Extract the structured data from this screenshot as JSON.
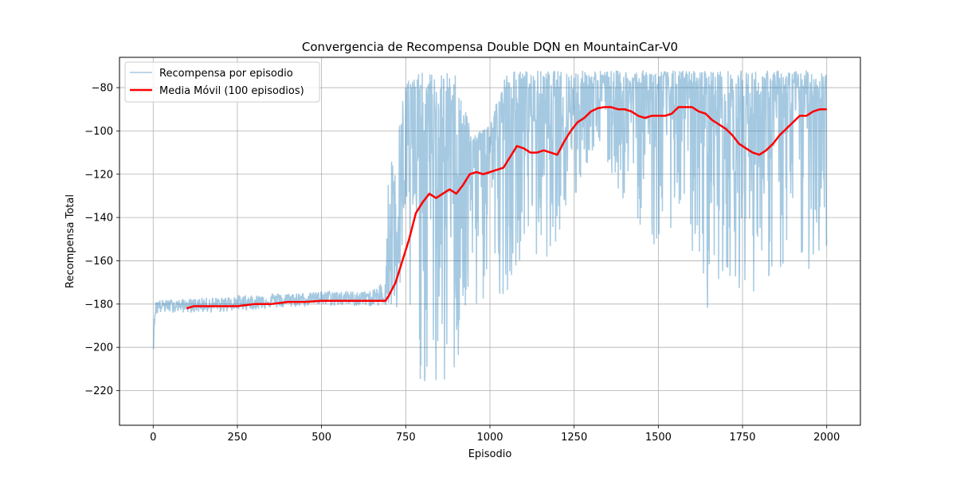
{
  "chart_data": {
    "type": "line",
    "title": "Convergencia de Recompensa Double DQN en MountainCar-V0",
    "xlabel": "Episodio",
    "ylabel": "Recompensa Total",
    "xlim": [
      -100,
      2100
    ],
    "ylim": [
      -236,
      -66
    ],
    "xticks": [
      0,
      250,
      500,
      750,
      1000,
      1250,
      1500,
      1750,
      2000
    ],
    "xtick_labels": [
      "0",
      "250",
      "500",
      "750",
      "1000",
      "1250",
      "1500",
      "1750",
      "2000"
    ],
    "yticks": [
      -220,
      -200,
      -180,
      -160,
      -140,
      -120,
      -100,
      -80
    ],
    "ytick_labels": [
      "−220",
      "−200",
      "−180",
      "−160",
      "−140",
      "−120",
      "−100",
      "−80"
    ],
    "grid": true,
    "legend_position": "upper-left",
    "series": [
      {
        "name": "Recompensa por episodio",
        "color": "#1f77b4",
        "alpha": 0.4,
        "style": "noisy-band",
        "x": [
          0,
          5,
          10,
          50,
          100,
          150,
          200,
          250,
          300,
          350,
          400,
          450,
          500,
          550,
          600,
          650,
          690,
          700,
          720,
          750,
          800,
          850,
          900,
          950,
          1000,
          1050,
          1100,
          1150,
          1200,
          1250,
          1300,
          1350,
          1400,
          1450,
          1500,
          1550,
          1600,
          1650,
          1700,
          1750,
          1800,
          1850,
          1900,
          1950,
          2000
        ],
        "center": [
          -200,
          -185,
          -181,
          -181,
          -181,
          -181,
          -181,
          -180,
          -180,
          -179,
          -179,
          -178,
          -178,
          -178,
          -178,
          -178,
          -178,
          -150,
          -140,
          -120,
          -110,
          -115,
          -110,
          -110,
          -105,
          -100,
          -90,
          -95,
          -95,
          -88,
          -85,
          -85,
          -85,
          -85,
          -85,
          -85,
          -85,
          -85,
          -95,
          -95,
          -90,
          -90,
          -85,
          -83,
          -85
        ],
        "low": [
          -204,
          -187,
          -185,
          -184,
          -184,
          -184,
          -184,
          -183,
          -183,
          -182,
          -182,
          -181,
          -181,
          -181,
          -181,
          -181,
          -181,
          -197,
          -190,
          -190,
          -221,
          -231,
          -218,
          -190,
          -178,
          -175,
          -155,
          -165,
          -150,
          -140,
          -110,
          -120,
          -135,
          -145,
          -160,
          -140,
          -160,
          -185,
          -165,
          -175,
          -175,
          -168,
          -175,
          -165,
          -160
        ],
        "high": [
          -196,
          -180,
          -178,
          -178,
          -178,
          -177,
          -177,
          -176,
          -176,
          -175,
          -175,
          -175,
          -174,
          -174,
          -174,
          -174,
          -168,
          -112,
          -110,
          -73,
          -73,
          -73,
          -73,
          -103,
          -95,
          -72,
          -72,
          -72,
          -72,
          -72,
          -72,
          -72,
          -72,
          -72,
          -72,
          -72,
          -72,
          -72,
          -72,
          -72,
          -72,
          -72,
          -72,
          -72,
          -72
        ]
      },
      {
        "name": "Media Móvil (100 episodios)",
        "color": "#ff0000",
        "style": "line",
        "x": [
          99,
          120,
          150,
          200,
          250,
          300,
          350,
          400,
          450,
          500,
          550,
          600,
          650,
          690,
          700,
          720,
          740,
          760,
          780,
          800,
          820,
          840,
          860,
          880,
          900,
          920,
          940,
          960,
          980,
          1000,
          1020,
          1040,
          1060,
          1080,
          1100,
          1120,
          1140,
          1160,
          1180,
          1200,
          1220,
          1240,
          1260,
          1280,
          1300,
          1320,
          1340,
          1360,
          1380,
          1400,
          1420,
          1440,
          1460,
          1480,
          1500,
          1520,
          1540,
          1560,
          1580,
          1600,
          1620,
          1640,
          1660,
          1680,
          1700,
          1720,
          1740,
          1760,
          1780,
          1800,
          1820,
          1840,
          1860,
          1880,
          1900,
          1920,
          1940,
          1960,
          1980,
          2000
        ],
        "y": [
          -182,
          -181,
          -181,
          -181,
          -181,
          -180,
          -180,
          -179,
          -179,
          -178.5,
          -178.5,
          -178.5,
          -178.5,
          -178.5,
          -176,
          -170,
          -160,
          -150,
          -138,
          -133,
          -129,
          -131,
          -129,
          -127,
          -129,
          -125,
          -120,
          -119,
          -120,
          -119,
          -118,
          -117,
          -112,
          -107,
          -108,
          -110,
          -110,
          -109,
          -110,
          -111,
          -105,
          -100,
          -96,
          -94,
          -91,
          -89.5,
          -89,
          -89,
          -90,
          -90,
          -91,
          -93,
          -94,
          -93,
          -93,
          -93,
          -92,
          -89,
          -89,
          -89,
          -91,
          -92,
          -95,
          -97,
          -99,
          -102,
          -106,
          -108,
          -110,
          -111,
          -109,
          -106,
          -102,
          -99,
          -96,
          -93,
          -93,
          -91,
          -90,
          -90
        ]
      }
    ]
  }
}
